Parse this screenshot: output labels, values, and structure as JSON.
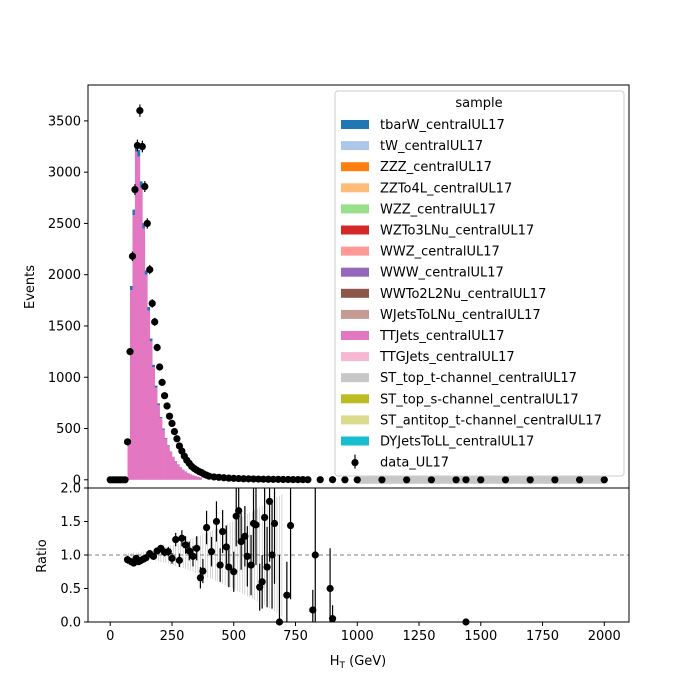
{
  "chart_data": [
    {
      "type": "bar",
      "subtype": "stacked-histogram",
      "title": "",
      "xlabel": "",
      "ylabel": "Events",
      "xlim": [
        -90,
        2100
      ],
      "ylim": [
        -80,
        3850
      ],
      "yticks": [
        0,
        500,
        1000,
        1500,
        2000,
        2500,
        3000,
        3500
      ],
      "legend": {
        "title": "sample",
        "placement": "top-right",
        "entries": [
          {
            "name": "tbarW_centralUL17",
            "color": "#1f77b4"
          },
          {
            "name": "tW_centralUL17",
            "color": "#aec7e8"
          },
          {
            "name": "ZZZ_centralUL17",
            "color": "#ff7f0e"
          },
          {
            "name": "ZZTo4L_centralUL17",
            "color": "#ffbb78"
          },
          {
            "name": "WZZ_centralUL17",
            "color": "#98df8a"
          },
          {
            "name": "WZTo3LNu_centralUL17",
            "color": "#d62728"
          },
          {
            "name": "WWZ_centralUL17",
            "color": "#ff9896"
          },
          {
            "name": "WWW_centralUL17",
            "color": "#9467bd"
          },
          {
            "name": "WWTo2L2Nu_centralUL17",
            "color": "#8c564b"
          },
          {
            "name": "WJetsToLNu_centralUL17",
            "color": "#c49c94"
          },
          {
            "name": "TTJets_centralUL17",
            "color": "#e377c2"
          },
          {
            "name": "TTGJets_centralUL17",
            "color": "#f7b6d2"
          },
          {
            "name": "ST_top_t-channel_centralUL17",
            "color": "#c7c7c7"
          },
          {
            "name": "ST_top_s-channel_centralUL17",
            "color": "#bcbd22"
          },
          {
            "name": "ST_antitop_t-channel_centralUL17",
            "color": "#dbdb8d"
          },
          {
            "name": "DYJetsToLL_centralUL17",
            "color": "#17becf"
          },
          {
            "name": "data_UL17",
            "color": "#000000",
            "marker": "errorbar"
          }
        ]
      },
      "mc_stack": {
        "bin_width": 10,
        "bin_start": 70,
        "ttjets": [
          380,
          1850,
          2580,
          3200,
          3150,
          2850,
          2450,
          2000,
          1650,
          1350,
          1100,
          900,
          730,
          600,
          490,
          400,
          330,
          270,
          220,
          180,
          148,
          120,
          98,
          80,
          65,
          53,
          43,
          35,
          28,
          23
        ],
        "tbarw": [
          8,
          40,
          55,
          70,
          68,
          60,
          52,
          42,
          35,
          28,
          22,
          18,
          15,
          12,
          10,
          8,
          6,
          5,
          4,
          3,
          3,
          2,
          2,
          2,
          1,
          1,
          1,
          1,
          1,
          1
        ]
      },
      "data_points": {
        "x": [
          0,
          10,
          20,
          30,
          40,
          50,
          60,
          70,
          80,
          90,
          100,
          110,
          120,
          130,
          140,
          150,
          160,
          170,
          180,
          190,
          200,
          210,
          220,
          230,
          240,
          250,
          260,
          270,
          280,
          290,
          300,
          310,
          320,
          330,
          340,
          350,
          360,
          370,
          380,
          390,
          400,
          420,
          440,
          460,
          480,
          500,
          520,
          540,
          560,
          580,
          600,
          620,
          640,
          660,
          680,
          700,
          720,
          740,
          760,
          780,
          800,
          850,
          900,
          950,
          1000,
          1100,
          1200,
          1300,
          1400,
          1440,
          1500,
          1600,
          1700,
          1800,
          1900,
          2000
        ],
        "y": [
          0,
          0,
          0,
          0,
          0,
          0,
          0,
          370,
          1250,
          2180,
          2830,
          3260,
          3600,
          3250,
          2860,
          2500,
          2050,
          1720,
          1540,
          1290,
          1100,
          950,
          820,
          720,
          620,
          550,
          470,
          400,
          330,
          280,
          230,
          190,
          160,
          130,
          110,
          95,
          80,
          70,
          55,
          45,
          35,
          28,
          24,
          20,
          16,
          14,
          12,
          10,
          9,
          8,
          7,
          6,
          5,
          4,
          4,
          3,
          3,
          2,
          2,
          2,
          1,
          1,
          1,
          0,
          0,
          0,
          0,
          0,
          0,
          1,
          0,
          0,
          0,
          0,
          0,
          0
        ]
      },
      "grey_band": {
        "x_from": 1000,
        "x_to": 2000,
        "y": 0
      }
    },
    {
      "type": "scatter",
      "subtype": "ratio",
      "xlabel": "H$_T$ (GeV)",
      "ylabel": "Ratio",
      "xlim": [
        -90,
        2100
      ],
      "ylim": [
        0.0,
        2.0
      ],
      "xticks": [
        0,
        250,
        500,
        750,
        1000,
        1250,
        1500,
        1750,
        2000
      ],
      "yticks": [
        "0.0",
        "0.5",
        "1.0",
        "1.5",
        "2.0"
      ],
      "reference_line": 1.0,
      "points": [
        {
          "x": 70,
          "y": 0.93,
          "e": 0.06
        },
        {
          "x": 85,
          "y": 0.9,
          "e": 0.04
        },
        {
          "x": 95,
          "y": 0.88,
          "e": 0.03
        },
        {
          "x": 105,
          "y": 0.95,
          "e": 0.03
        },
        {
          "x": 115,
          "y": 0.9,
          "e": 0.03
        },
        {
          "x": 125,
          "y": 0.92,
          "e": 0.03
        },
        {
          "x": 135,
          "y": 0.94,
          "e": 0.03
        },
        {
          "x": 145,
          "y": 0.96,
          "e": 0.03
        },
        {
          "x": 160,
          "y": 1.02,
          "e": 0.04
        },
        {
          "x": 175,
          "y": 0.98,
          "e": 0.04
        },
        {
          "x": 190,
          "y": 1.06,
          "e": 0.05
        },
        {
          "x": 205,
          "y": 1.1,
          "e": 0.05
        },
        {
          "x": 220,
          "y": 1.04,
          "e": 0.06
        },
        {
          "x": 235,
          "y": 1.05,
          "e": 0.07
        },
        {
          "x": 250,
          "y": 0.95,
          "e": 0.08
        },
        {
          "x": 265,
          "y": 1.23,
          "e": 0.1
        },
        {
          "x": 280,
          "y": 0.92,
          "e": 0.1
        },
        {
          "x": 290,
          "y": 1.25,
          "e": 0.12
        },
        {
          "x": 305,
          "y": 1.15,
          "e": 0.13
        },
        {
          "x": 320,
          "y": 1.06,
          "e": 0.14
        },
        {
          "x": 335,
          "y": 0.98,
          "e": 0.15
        },
        {
          "x": 350,
          "y": 1.1,
          "e": 0.18
        },
        {
          "x": 365,
          "y": 0.66,
          "e": 0.16
        },
        {
          "x": 375,
          "y": 0.76,
          "e": 0.18
        },
        {
          "x": 390,
          "y": 1.41,
          "e": 0.25
        },
        {
          "x": 410,
          "y": 1.05,
          "e": 0.22
        },
        {
          "x": 430,
          "y": 1.5,
          "e": 0.3
        },
        {
          "x": 445,
          "y": 0.85,
          "e": 0.25
        },
        {
          "x": 455,
          "y": 1.35,
          "e": 0.32
        },
        {
          "x": 470,
          "y": 1.12,
          "e": 0.32
        },
        {
          "x": 480,
          "y": 0.82,
          "e": 0.3
        },
        {
          "x": 500,
          "y": 0.75,
          "e": 0.3
        },
        {
          "x": 510,
          "y": 1.58,
          "e": 0.45
        },
        {
          "x": 520,
          "y": 1.66,
          "e": 0.48
        },
        {
          "x": 530,
          "y": 1.2,
          "e": 0.42
        },
        {
          "x": 545,
          "y": 1.28,
          "e": 0.45
        },
        {
          "x": 555,
          "y": 0.98,
          "e": 0.45
        },
        {
          "x": 570,
          "y": 0.85,
          "e": 0.45
        },
        {
          "x": 580,
          "y": 1.47,
          "e": 0.6
        },
        {
          "x": 590,
          "y": 1.45,
          "e": 0.6
        },
        {
          "x": 605,
          "y": 0.52,
          "e": 0.35
        },
        {
          "x": 615,
          "y": 0.6,
          "e": 0.4
        },
        {
          "x": 625,
          "y": 1.56,
          "e": 0.75
        },
        {
          "x": 635,
          "y": 0.82,
          "e": 0.6
        },
        {
          "x": 645,
          "y": 1.8,
          "e": 0.9
        },
        {
          "x": 655,
          "y": 1.0,
          "e": 0.8
        },
        {
          "x": 665,
          "y": 1.47,
          "e": 0.9
        },
        {
          "x": 685,
          "y": 0.0,
          "e": 1.0
        },
        {
          "x": 715,
          "y": 0.4,
          "e": 0.5
        },
        {
          "x": 730,
          "y": 1.44,
          "e": 1.1
        },
        {
          "x": 820,
          "y": 0.18,
          "e": 0.3
        },
        {
          "x": 830,
          "y": 1.0,
          "e": 1.1
        },
        {
          "x": 890,
          "y": 0.5,
          "e": 0.6
        },
        {
          "x": 900,
          "y": 0.05,
          "e": 0.2
        },
        {
          "x": 1440,
          "y": 0.0,
          "e": 0.0
        }
      ],
      "mc_uncertainty_band_color": "#aaaaaa"
    }
  ]
}
